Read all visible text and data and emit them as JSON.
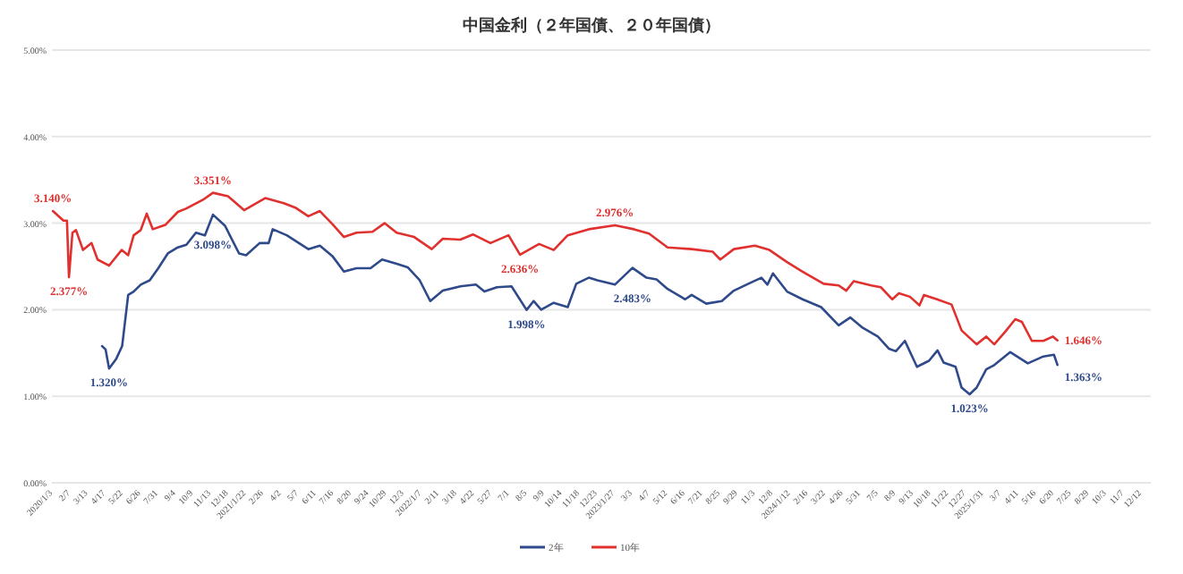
{
  "chart_data": {
    "type": "line",
    "title": "中国金利（２年国債、２０年国債）",
    "xlim": [
      "2020-01-01",
      "2025-12-30"
    ],
    "ylim": [
      0,
      5
    ],
    "yticks": [
      {
        "value": 0,
        "label": "0.00%"
      },
      {
        "value": 1,
        "label": "1.00%"
      },
      {
        "value": 2,
        "label": "2.00%"
      },
      {
        "value": 3,
        "label": "3.00%"
      },
      {
        "value": 4,
        "label": "4.00%"
      },
      {
        "value": 5,
        "label": "5.00%"
      }
    ],
    "xticks": [
      {
        "value": "2020-01-03",
        "label": "2020/1/3"
      },
      {
        "value": "2020-02-07",
        "label": "2/7"
      },
      {
        "value": "2020-03-13",
        "label": "3/13"
      },
      {
        "value": "2020-04-17",
        "label": "4/17"
      },
      {
        "value": "2020-05-22",
        "label": "5/22"
      },
      {
        "value": "2020-06-26",
        "label": "6/26"
      },
      {
        "value": "2020-07-31",
        "label": "7/31"
      },
      {
        "value": "2020-09-04",
        "label": "9/4"
      },
      {
        "value": "2020-10-09",
        "label": "10/9"
      },
      {
        "value": "2020-11-13",
        "label": "11/13"
      },
      {
        "value": "2020-12-18",
        "label": "12/18"
      },
      {
        "value": "2021-01-22",
        "label": "2021/1/22"
      },
      {
        "value": "2021-02-26",
        "label": "2/26"
      },
      {
        "value": "2021-04-02",
        "label": "4/2"
      },
      {
        "value": "2021-05-07",
        "label": "5/7"
      },
      {
        "value": "2021-06-11",
        "label": "6/11"
      },
      {
        "value": "2021-07-16",
        "label": "7/16"
      },
      {
        "value": "2021-08-20",
        "label": "8/20"
      },
      {
        "value": "2021-09-24",
        "label": "9/24"
      },
      {
        "value": "2021-10-29",
        "label": "10/29"
      },
      {
        "value": "2021-12-03",
        "label": "12/3"
      },
      {
        "value": "2022-01-07",
        "label": "2022/1/7"
      },
      {
        "value": "2022-02-11",
        "label": "2/11"
      },
      {
        "value": "2022-03-18",
        "label": "3/18"
      },
      {
        "value": "2022-04-22",
        "label": "4/22"
      },
      {
        "value": "2022-05-27",
        "label": "5/27"
      },
      {
        "value": "2022-07-01",
        "label": "7/1"
      },
      {
        "value": "2022-08-05",
        "label": "8/5"
      },
      {
        "value": "2022-09-09",
        "label": "9/9"
      },
      {
        "value": "2022-10-14",
        "label": "10/14"
      },
      {
        "value": "2022-11-18",
        "label": "11/18"
      },
      {
        "value": "2022-12-23",
        "label": "12/23"
      },
      {
        "value": "2023-01-27",
        "label": "2023/1/27"
      },
      {
        "value": "2023-03-03",
        "label": "3/3"
      },
      {
        "value": "2023-04-07",
        "label": "4/7"
      },
      {
        "value": "2023-05-12",
        "label": "5/12"
      },
      {
        "value": "2023-06-16",
        "label": "6/16"
      },
      {
        "value": "2023-07-21",
        "label": "7/21"
      },
      {
        "value": "2023-08-25",
        "label": "8/25"
      },
      {
        "value": "2023-09-29",
        "label": "9/29"
      },
      {
        "value": "2023-11-03",
        "label": "11/3"
      },
      {
        "value": "2023-12-08",
        "label": "12/8"
      },
      {
        "value": "2024-01-12",
        "label": "2024/1/12"
      },
      {
        "value": "2024-02-16",
        "label": "2/16"
      },
      {
        "value": "2024-03-22",
        "label": "3/22"
      },
      {
        "value": "2024-04-26",
        "label": "4/26"
      },
      {
        "value": "2024-05-31",
        "label": "5/31"
      },
      {
        "value": "2024-07-05",
        "label": "7/5"
      },
      {
        "value": "2024-08-09",
        "label": "8/9"
      },
      {
        "value": "2024-09-13",
        "label": "9/13"
      },
      {
        "value": "2024-10-18",
        "label": "10/18"
      },
      {
        "value": "2024-11-22",
        "label": "11/22"
      },
      {
        "value": "2024-12-27",
        "label": "12/27"
      },
      {
        "value": "2025-01-31",
        "label": "2025/1/31"
      },
      {
        "value": "2025-03-07",
        "label": "3/7"
      },
      {
        "value": "2025-04-11",
        "label": "4/11"
      },
      {
        "value": "2025-05-16",
        "label": "5/16"
      },
      {
        "value": "2025-06-20",
        "label": "6/20"
      },
      {
        "value": "2025-07-25",
        "label": "7/25"
      },
      {
        "value": "2025-08-29",
        "label": "8/29"
      },
      {
        "value": "2025-10-03",
        "label": "10/3"
      },
      {
        "value": "2025-11-07",
        "label": "11/7"
      },
      {
        "value": "2025-12-12",
        "label": "12/12"
      }
    ],
    "grid": "y",
    "legend": "bottom",
    "marker": "none",
    "line_style": "solid",
    "series": [
      {
        "name": "2年",
        "color": "#2e4a8b",
        "x": [
          "2020-04-10",
          "2020-04-17",
          "2020-04-24",
          "2020-05-08",
          "2020-05-20",
          "2020-06-01",
          "2020-06-12",
          "2020-06-26",
          "2020-07-14",
          "2020-07-31",
          "2020-08-19",
          "2020-09-08",
          "2020-09-25",
          "2020-10-14",
          "2020-11-01",
          "2020-11-17",
          "2020-12-11",
          "2021-01-08",
          "2021-01-22",
          "2021-02-18",
          "2021-03-08",
          "2021-03-16",
          "2021-04-13",
          "2021-05-26",
          "2021-06-18",
          "2021-07-13",
          "2021-08-05",
          "2021-08-30",
          "2021-09-27",
          "2021-10-20",
          "2021-11-18",
          "2021-12-10",
          "2022-01-03",
          "2022-01-24",
          "2022-02-18",
          "2022-03-25",
          "2022-04-25",
          "2022-05-12",
          "2022-06-06",
          "2022-07-05",
          "2022-08-04",
          "2022-08-18",
          "2022-09-02",
          "2022-09-27",
          "2022-10-25",
          "2022-11-11",
          "2022-12-06",
          "2022-12-23",
          "2023-01-27",
          "2023-03-03",
          "2023-03-31",
          "2023-04-20",
          "2023-05-12",
          "2023-06-16",
          "2023-06-29",
          "2023-07-28",
          "2023-08-28",
          "2023-09-21",
          "2023-10-20",
          "2023-11-15",
          "2023-11-27",
          "2023-12-08",
          "2024-01-05",
          "2024-02-05",
          "2024-03-13",
          "2024-04-17",
          "2024-05-10",
          "2024-06-04",
          "2024-07-04",
          "2024-07-26",
          "2024-08-09",
          "2024-08-27",
          "2024-09-20",
          "2024-10-14",
          "2024-10-31",
          "2024-11-12",
          "2024-12-06",
          "2024-12-18",
          "2025-01-03",
          "2025-01-17",
          "2025-02-05",
          "2025-02-21",
          "2025-03-25",
          "2025-04-29",
          "2025-05-30",
          "2025-06-20",
          "2025-06-27"
        ],
        "values": [
          1.58,
          1.54,
          1.32,
          1.43,
          1.58,
          2.17,
          2.21,
          2.29,
          2.34,
          2.48,
          2.65,
          2.72,
          2.75,
          2.89,
          2.86,
          3.098,
          2.97,
          2.65,
          2.63,
          2.77,
          2.77,
          2.93,
          2.86,
          2.7,
          2.74,
          2.62,
          2.44,
          2.48,
          2.48,
          2.58,
          2.53,
          2.49,
          2.34,
          2.1,
          2.22,
          2.27,
          2.29,
          2.21,
          2.26,
          2.27,
          1.998,
          2.1,
          2.0,
          2.08,
          2.03,
          2.3,
          2.37,
          2.34,
          2.29,
          2.483,
          2.37,
          2.35,
          2.24,
          2.12,
          2.17,
          2.07,
          2.1,
          2.22,
          2.3,
          2.37,
          2.29,
          2.42,
          2.21,
          2.12,
          2.03,
          1.82,
          1.91,
          1.79,
          1.69,
          1.55,
          1.52,
          1.64,
          1.34,
          1.41,
          1.53,
          1.39,
          1.34,
          1.1,
          1.023,
          1.1,
          1.31,
          1.36,
          1.51,
          1.38,
          1.46,
          1.48,
          1.363
        ]
      },
      {
        "name": "10年",
        "color": "#e0312f",
        "x": [
          "2020-01-03",
          "2020-01-24",
          "2020-01-31",
          "2020-02-04",
          "2020-02-11",
          "2020-02-18",
          "2020-03-03",
          "2020-03-20",
          "2020-04-01",
          "2020-04-24",
          "2020-05-19",
          "2020-06-01",
          "2020-06-12",
          "2020-06-26",
          "2020-07-08",
          "2020-07-20",
          "2020-08-14",
          "2020-09-08",
          "2020-09-25",
          "2020-10-28",
          "2020-11-17",
          "2020-12-17",
          "2021-01-18",
          "2021-03-01",
          "2021-04-07",
          "2021-04-30",
          "2021-05-26",
          "2021-06-18",
          "2021-07-13",
          "2021-08-05",
          "2021-08-30",
          "2021-10-01",
          "2021-10-25",
          "2021-11-18",
          "2021-12-23",
          "2022-01-27",
          "2022-02-18",
          "2022-03-25",
          "2022-04-19",
          "2022-05-24",
          "2022-06-29",
          "2022-07-22",
          "2022-08-29",
          "2022-09-27",
          "2022-10-25",
          "2022-12-06",
          "2023-01-27",
          "2023-03-06",
          "2023-04-05",
          "2023-05-12",
          "2023-06-29",
          "2023-08-10",
          "2023-08-25",
          "2023-09-21",
          "2023-11-02",
          "2023-12-01",
          "2024-01-05",
          "2024-02-05",
          "2024-03-18",
          "2024-04-17",
          "2024-05-02",
          "2024-05-17",
          "2024-06-21",
          "2024-07-10",
          "2024-08-02",
          "2024-08-15",
          "2024-09-06",
          "2024-09-25",
          "2024-10-04",
          "2024-10-30",
          "2024-11-28",
          "2024-12-18",
          "2025-01-17",
          "2025-02-05",
          "2025-02-21",
          "2025-03-14",
          "2025-04-04",
          "2025-04-17",
          "2025-05-07",
          "2025-05-30",
          "2025-06-18",
          "2025-06-27"
        ],
        "values": [
          3.14,
          3.03,
          3.03,
          2.377,
          2.89,
          2.92,
          2.69,
          2.77,
          2.58,
          2.51,
          2.69,
          2.63,
          2.86,
          2.92,
          3.11,
          2.93,
          2.98,
          3.13,
          3.17,
          3.27,
          3.351,
          3.31,
          3.15,
          3.29,
          3.23,
          3.18,
          3.08,
          3.14,
          2.99,
          2.84,
          2.89,
          2.9,
          3.0,
          2.89,
          2.84,
          2.7,
          2.82,
          2.81,
          2.87,
          2.77,
          2.86,
          2.636,
          2.76,
          2.69,
          2.86,
          2.93,
          2.976,
          2.93,
          2.88,
          2.72,
          2.7,
          2.67,
          2.58,
          2.7,
          2.74,
          2.69,
          2.55,
          2.44,
          2.3,
          2.28,
          2.22,
          2.33,
          2.28,
          2.26,
          2.12,
          2.19,
          2.15,
          2.05,
          2.17,
          2.12,
          2.06,
          1.76,
          1.6,
          1.69,
          1.6,
          1.74,
          1.89,
          1.86,
          1.64,
          1.64,
          1.69,
          1.646
        ]
      }
    ],
    "annotations": [
      {
        "text": "3.140%",
        "x": "2020-01-03",
        "y": 3.14
      },
      {
        "text": "2.377%",
        "x": "2020-02-04",
        "y": 2.377
      },
      {
        "text": "1.320%",
        "x": "2020-04-24",
        "y": 1.32
      },
      {
        "text": "3.351%",
        "x": "2020-11-17",
        "y": 3.351
      },
      {
        "text": "3.098%",
        "x": "2020-11-17",
        "y": 3.098
      },
      {
        "text": "2.636%",
        "x": "2022-07-22",
        "y": 2.636
      },
      {
        "text": "1.998%",
        "x": "2022-08-04",
        "y": 1.998
      },
      {
        "text": "2.976%",
        "x": "2023-01-27",
        "y": 2.976
      },
      {
        "text": "2.483%",
        "x": "2023-03-03",
        "y": 2.483
      },
      {
        "text": "1.023%",
        "x": "2025-01-03",
        "y": 1.023
      },
      {
        "text": "1.646%",
        "x": "2025-06-27",
        "y": 1.646
      },
      {
        "text": "1.363%",
        "x": "2025-06-27",
        "y": 1.363
      }
    ]
  }
}
